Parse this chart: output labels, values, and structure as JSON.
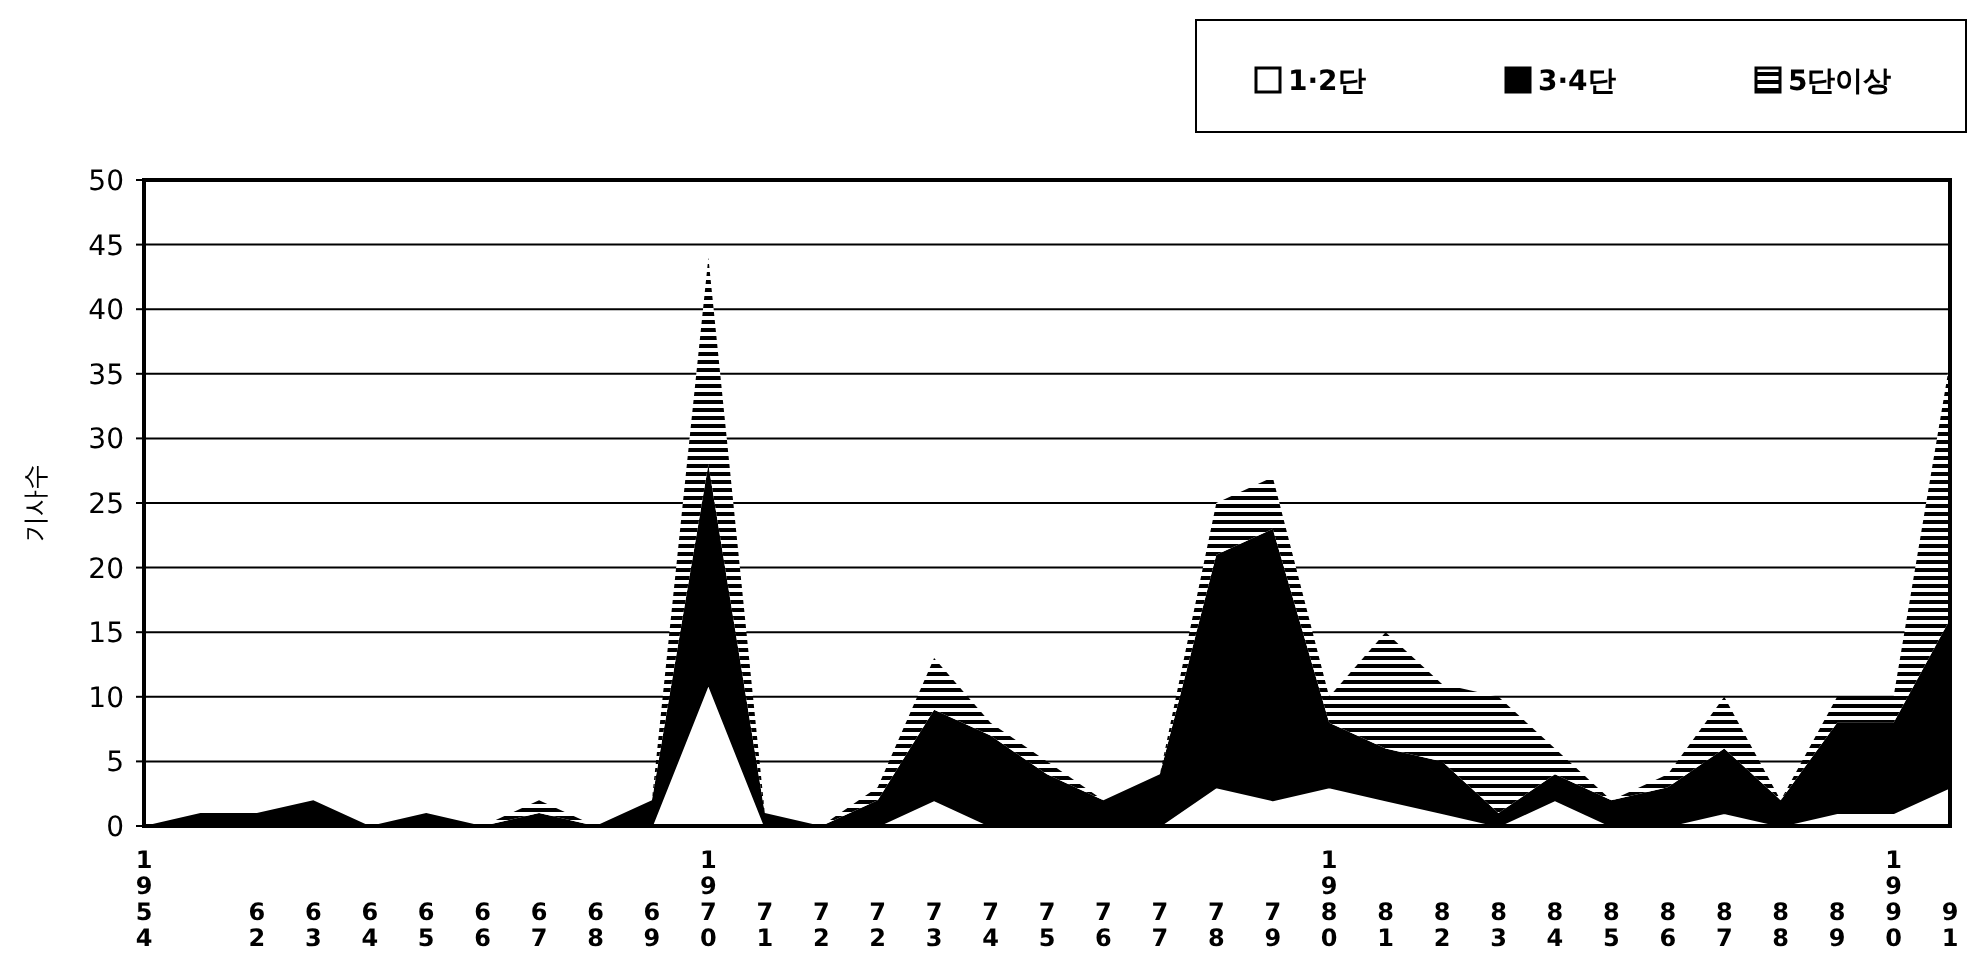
{
  "chart_data": {
    "type": "area",
    "stacked": true,
    "ylabel": "기사수",
    "categories": [
      "1954",
      null,
      "62",
      "63",
      "64",
      "65",
      "66",
      "67",
      "68",
      "69",
      "1970",
      "71",
      "72",
      "72",
      "73",
      "74",
      "75",
      "76",
      "77",
      "78",
      "79",
      "1980",
      "81",
      "82",
      "83",
      "84",
      "85",
      "86",
      "87",
      "88",
      "89",
      "1990",
      "91"
    ],
    "series": [
      {
        "name": "1·2단",
        "color": "#ffffff",
        "values": [
          0,
          0,
          0,
          0,
          0,
          0,
          0,
          0,
          0,
          0,
          11,
          0,
          0,
          0,
          2,
          0,
          0,
          0,
          0,
          3,
          2,
          3,
          2,
          1,
          0,
          2,
          0,
          0,
          1,
          0,
          1,
          1,
          3
        ]
      },
      {
        "name": "3·4단",
        "color": "#000000",
        "values": [
          0,
          1,
          1,
          2,
          0,
          1,
          0,
          1,
          0,
          2,
          17,
          1,
          0,
          2,
          7,
          7,
          4,
          2,
          4,
          18,
          21,
          5,
          4,
          4,
          1,
          2,
          2,
          3,
          5,
          2,
          7,
          7,
          13
        ]
      },
      {
        "name": "5단이상",
        "color": "#000000",
        "values": [
          0,
          0,
          0,
          0,
          0,
          0,
          0,
          1,
          0,
          0,
          16,
          0,
          0,
          1,
          4,
          1,
          1,
          0,
          0,
          4,
          4,
          2,
          9,
          6,
          9,
          2,
          0,
          1,
          4,
          0,
          2,
          2,
          20
        ]
      }
    ],
    "ylim": [
      0,
      50
    ],
    "yticks": [
      0,
      5,
      10,
      15,
      20,
      25,
      30,
      35,
      40,
      45,
      50
    ],
    "grid": "y",
    "legend": "top right"
  }
}
